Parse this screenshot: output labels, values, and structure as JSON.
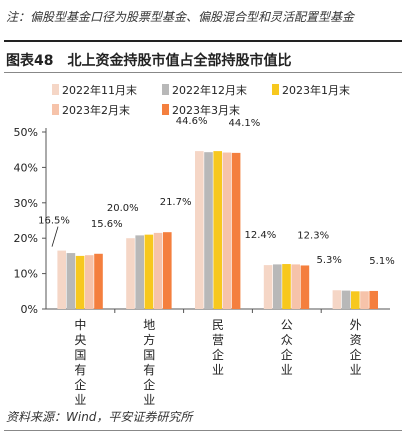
{
  "note": "注：偏股型基金口径为股票型基金、偏股混合型和灵活配置型基金",
  "figure": {
    "number": "图表48",
    "title": "北上资金持股市值占全部持股市值比"
  },
  "source": "资料来源：Wind，平安证券研究所",
  "chart_data": {
    "type": "bar",
    "categories": [
      "中央国有企业",
      "地方国有企业",
      "民营企业",
      "公众企业",
      "外资企业"
    ],
    "series": [
      {
        "name": "2022年11月末",
        "color": "#f5d6c6",
        "values": [
          16.5,
          20.0,
          44.6,
          12.4,
          5.3
        ]
      },
      {
        "name": "2022年12月末",
        "color": "#b8b8b8",
        "values": [
          15.8,
          20.8,
          44.3,
          12.6,
          5.2
        ]
      },
      {
        "name": "2023年1月末",
        "color": "#f7c81e",
        "values": [
          15.0,
          21.0,
          44.6,
          12.7,
          5.0
        ]
      },
      {
        "name": "2023年2月末",
        "color": "#f6c3aa",
        "values": [
          15.2,
          21.5,
          44.2,
          12.6,
          5.0
        ]
      },
      {
        "name": "2023年3月末",
        "color": "#f47f3e",
        "values": [
          15.6,
          21.7,
          44.1,
          12.3,
          5.1
        ]
      }
    ],
    "data_labels": [
      {
        "category": 0,
        "series": 0,
        "text": "16.5%"
      },
      {
        "category": 0,
        "series": 4,
        "text": "15.6%"
      },
      {
        "category": 1,
        "series": 0,
        "text": "20.0%"
      },
      {
        "category": 1,
        "series": 4,
        "text": "21.7%"
      },
      {
        "category": 2,
        "series": 0,
        "text": "44.6%"
      },
      {
        "category": 2,
        "series": 4,
        "text": "44.1%"
      },
      {
        "category": 3,
        "series": 0,
        "text": "12.4%"
      },
      {
        "category": 3,
        "series": 4,
        "text": "12.3%"
      },
      {
        "category": 4,
        "series": 0,
        "text": "5.3%"
      },
      {
        "category": 4,
        "series": 4,
        "text": "5.1%"
      }
    ],
    "yticks": [
      "0%",
      "10%",
      "20%",
      "30%",
      "40%",
      "50%"
    ],
    "ylim": [
      0,
      50
    ],
    "legend": "top",
    "grid": false
  }
}
